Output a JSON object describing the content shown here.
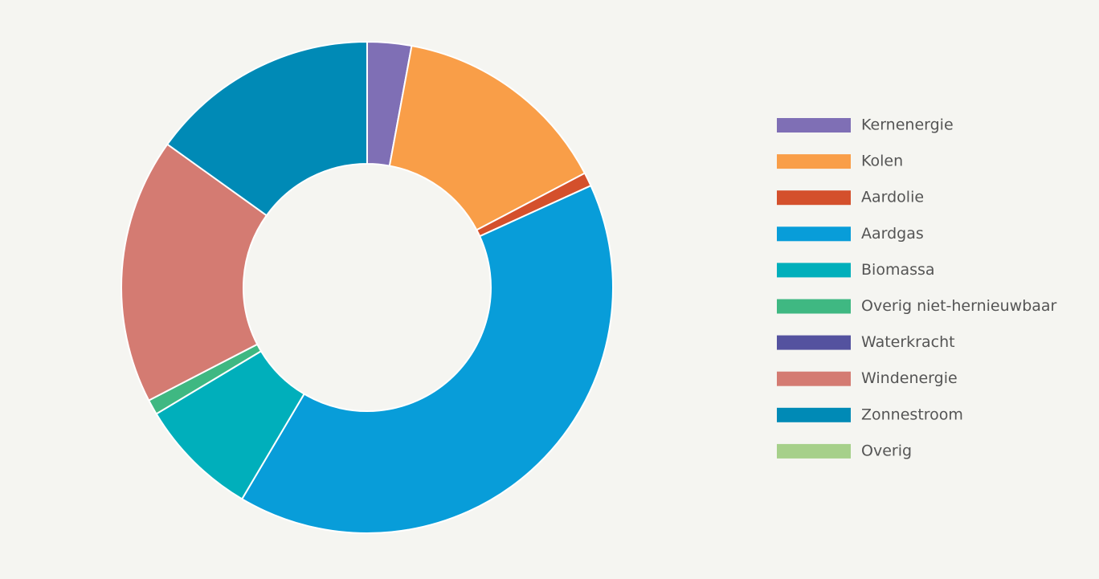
{
  "chart_data": {
    "type": "donut",
    "categories": [
      "Kernenergie",
      "Kolen",
      "Aardolie",
      "Aardgas",
      "Biomassa",
      "Overig niet-hernieuwbaar",
      "Waterkracht",
      "Windenergie",
      "Zonnestroom",
      "Overig"
    ],
    "values": [
      2.9,
      14.4,
      0.9,
      40.3,
      7.9,
      1.0,
      0,
      17.5,
      15.1,
      0
    ],
    "colors": [
      "#7f6fb5",
      "#f99e48",
      "#d4502c",
      "#089dd9",
      "#00afbb",
      "#3fb882",
      "#54529f",
      "#d47b72",
      "#008ab6",
      "#a6d08a"
    ],
    "legend": "right"
  }
}
